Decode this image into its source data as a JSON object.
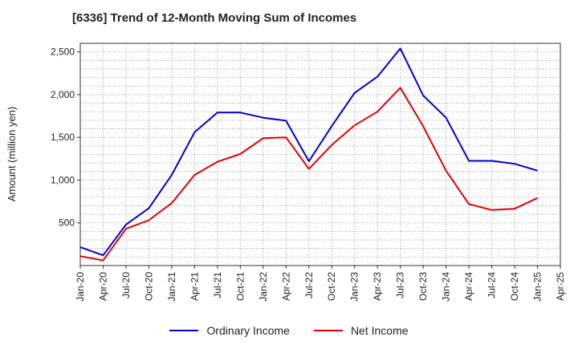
{
  "chart_data": {
    "type": "line",
    "title": "[6336]  Trend of 12-Month Moving Sum of Incomes",
    "xlabel": "",
    "ylabel": "Amount (million yen)",
    "ylim": [
      0,
      2600
    ],
    "yticks": [
      500,
      1000,
      1500,
      2000,
      2500
    ],
    "ytick_labels": [
      "500",
      "1,000",
      "1,500",
      "2,000",
      "2,500"
    ],
    "categories": [
      "Jan-20",
      "Apr-20",
      "Jul-20",
      "Oct-20",
      "Jan-21",
      "Apr-21",
      "Jul-21",
      "Oct-21",
      "Jan-22",
      "Apr-22",
      "Jul-22",
      "Oct-22",
      "Jan-23",
      "Apr-23",
      "Jul-23",
      "Oct-23",
      "Jan-24",
      "Apr-24",
      "Jul-24",
      "Oct-24",
      "Jan-25",
      "Apr-25"
    ],
    "grid": true,
    "legend_position": "bottom",
    "series": [
      {
        "name": "Ordinary Income",
        "color": "#0000cc",
        "values": [
          215,
          120,
          480,
          670,
          1060,
          1560,
          1790,
          1790,
          1730,
          1695,
          1220,
          1630,
          2020,
          2210,
          2540,
          1990,
          1730,
          1225,
          1225,
          1190,
          1110,
          null
        ]
      },
      {
        "name": "Net Income",
        "color": "#e00000",
        "values": [
          110,
          60,
          430,
          530,
          730,
          1060,
          1215,
          1305,
          1490,
          1500,
          1130,
          1410,
          1640,
          1800,
          2080,
          1630,
          1110,
          720,
          650,
          665,
          790,
          null
        ]
      }
    ]
  }
}
